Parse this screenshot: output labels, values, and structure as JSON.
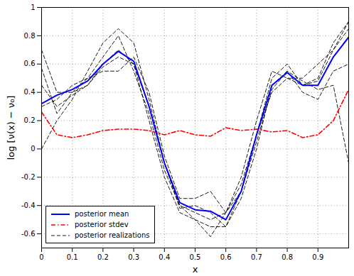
{
  "chart_data": {
    "type": "line",
    "x_label": "x",
    "y_label": "log [ν(x) − ν₀]",
    "x": [
      0,
      0.05,
      0.1,
      0.15,
      0.2,
      0.25,
      0.3,
      0.35,
      0.4,
      0.45,
      0.5,
      0.55,
      0.6,
      0.65,
      0.7,
      0.75,
      0.8,
      0.85,
      0.9,
      0.95,
      1.0
    ],
    "series": [
      {
        "name": "posterior realizations",
        "color": "#000000",
        "line_style": "dashed",
        "values": [
          0.0,
          0.2,
          0.35,
          0.55,
          0.75,
          0.85,
          0.75,
          0.35,
          -0.1,
          -0.4,
          -0.45,
          -0.5,
          -0.45,
          -0.25,
          0.1,
          0.5,
          0.6,
          0.45,
          0.5,
          0.75,
          0.9
        ]
      },
      {
        "name": "posterior realizations",
        "color": "#000000",
        "line_style": "dashed",
        "values": [
          0.57,
          0.25,
          0.4,
          0.5,
          0.55,
          0.55,
          0.65,
          0.4,
          -0.05,
          -0.35,
          -0.35,
          -0.3,
          -0.45,
          -0.2,
          0.2,
          0.55,
          0.5,
          0.5,
          0.6,
          0.7,
          0.85
        ]
      },
      {
        "name": "posterior realizations",
        "color": "#000000",
        "line_style": "dashed",
        "values": [
          0.7,
          0.4,
          0.4,
          0.45,
          0.6,
          0.7,
          0.6,
          0.2,
          -0.2,
          -0.45,
          -0.5,
          -0.55,
          -0.55,
          -0.35,
          0.0,
          0.45,
          0.55,
          0.4,
          0.35,
          0.55,
          0.6
        ]
      },
      {
        "name": "posterior realizations",
        "color": "#000000",
        "line_style": "dashed",
        "values": [
          0.3,
          0.35,
          0.45,
          0.5,
          0.65,
          0.8,
          0.55,
          0.25,
          -0.15,
          -0.4,
          -0.5,
          -0.62,
          -0.45,
          -0.3,
          0.1,
          0.4,
          0.5,
          0.45,
          0.48,
          0.7,
          0.9
        ]
      },
      {
        "name": "posterior realizations",
        "color": "#000000",
        "line_style": "dashed",
        "values": [
          0.45,
          0.3,
          0.38,
          0.45,
          0.58,
          0.65,
          0.6,
          0.3,
          -0.1,
          -0.42,
          -0.4,
          -0.45,
          -0.55,
          -0.3,
          0.05,
          0.42,
          0.55,
          0.48,
          0.42,
          0.45,
          -0.1
        ]
      },
      {
        "name": "posterior stdev",
        "color": "#ff0000",
        "line_style": "dashdot",
        "values": [
          0.26,
          0.1,
          0.08,
          0.1,
          0.13,
          0.14,
          0.14,
          0.13,
          0.1,
          0.13,
          0.1,
          0.09,
          0.15,
          0.13,
          0.14,
          0.12,
          0.13,
          0.08,
          0.1,
          0.2,
          0.42
        ]
      },
      {
        "name": "posterior mean",
        "color": "#0000ff",
        "line_style": "solid",
        "values": [
          0.32,
          0.38,
          0.42,
          0.48,
          0.6,
          0.69,
          0.62,
          0.3,
          -0.1,
          -0.38,
          -0.43,
          -0.44,
          -0.5,
          -0.3,
          0.1,
          0.45,
          0.54,
          0.45,
          0.45,
          0.65,
          0.79
        ]
      }
    ],
    "xlim": [
      0,
      1
    ],
    "xticks": [
      0,
      0.1,
      0.2,
      0.3,
      0.4,
      0.5,
      0.6,
      0.7,
      0.8,
      0.9
    ],
    "ylim": [
      -0.7,
      1
    ],
    "yticks": [
      -0.6,
      -0.4,
      -0.2,
      0,
      0.2,
      0.4,
      0.6,
      0.8,
      1
    ],
    "grid": true,
    "legend": "lower left"
  }
}
